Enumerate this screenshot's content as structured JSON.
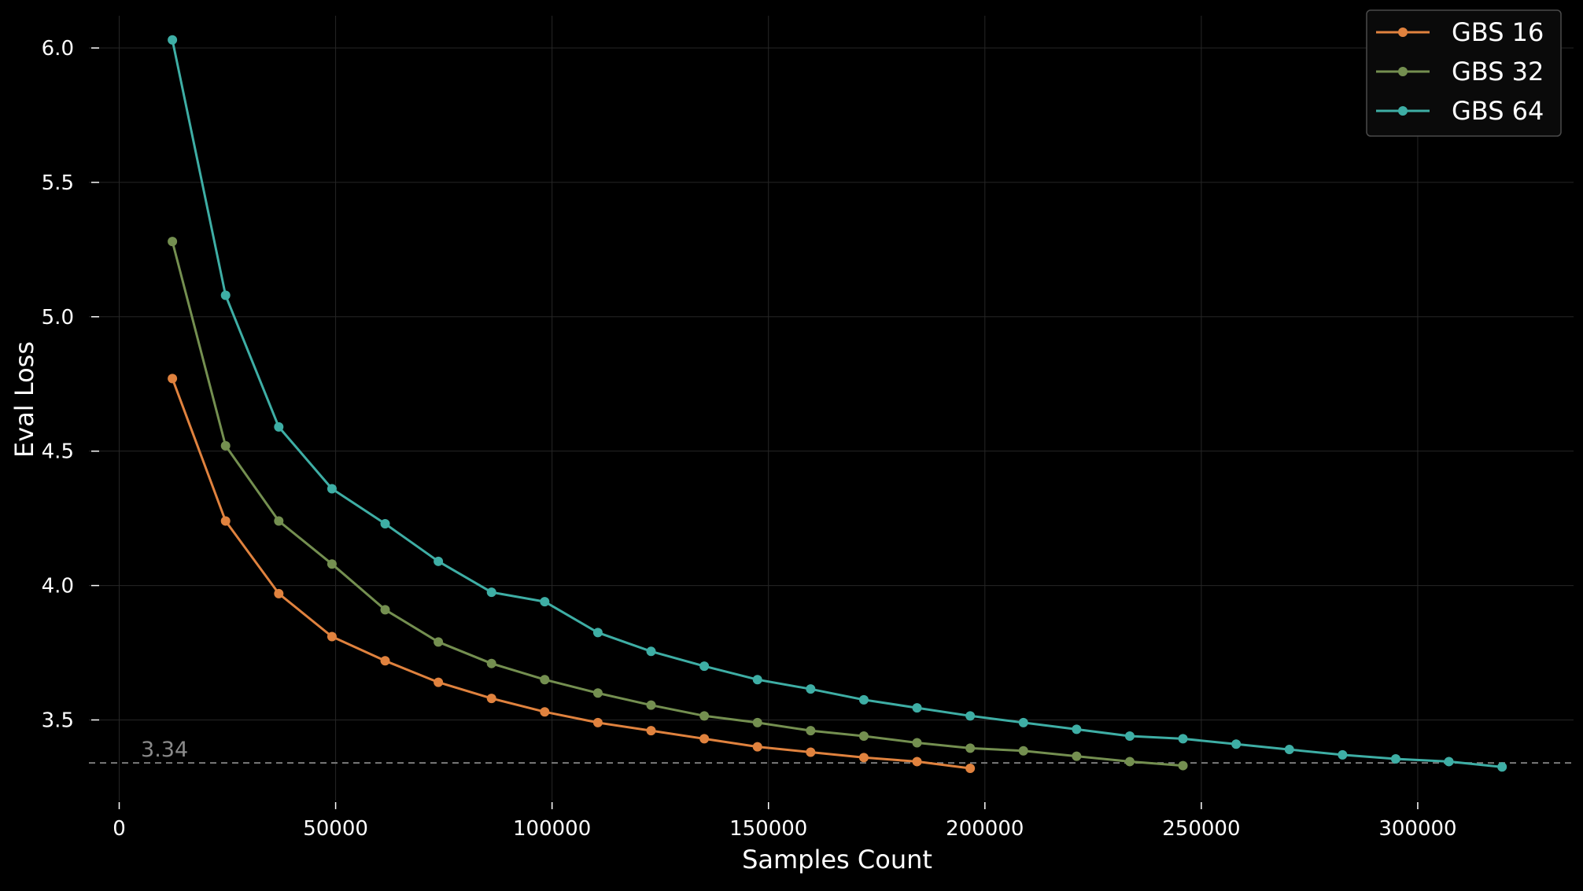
{
  "chart_data": {
    "type": "line",
    "xlabel": "Samples Count",
    "ylabel": "Eval Loss",
    "xlim": [
      -7000,
      336000
    ],
    "ylim": [
      3.2,
      6.12
    ],
    "xticks": [
      0,
      50000,
      100000,
      150000,
      200000,
      250000,
      300000
    ],
    "xtick_labels": [
      "0",
      "50000",
      "100000",
      "150000",
      "200000",
      "250000",
      "300000"
    ],
    "yticks": [
      3.5,
      4.0,
      4.5,
      5.0,
      5.5,
      6.0
    ],
    "ytick_labels": [
      "3.5",
      "4.0",
      "4.5",
      "5.0",
      "5.5",
      "6.0"
    ],
    "grid": true,
    "legend_position": "top-right",
    "reference_line": {
      "y": 3.34,
      "label": "3.34",
      "color": "#7a7a7a",
      "style": "dashed"
    },
    "series": [
      {
        "name": "GBS 16",
        "color": "#e0823e",
        "x": [
          12288,
          24576,
          36864,
          49152,
          61440,
          73728,
          86016,
          98304,
          110592,
          122880,
          135168,
          147456,
          159744,
          172032,
          184320,
          196608
        ],
        "y": [
          4.77,
          4.24,
          3.97,
          3.81,
          3.72,
          3.64,
          3.58,
          3.53,
          3.49,
          3.46,
          3.43,
          3.4,
          3.38,
          3.36,
          3.345,
          3.32
        ]
      },
      {
        "name": "GBS 32",
        "color": "#748f50",
        "x": [
          12288,
          24576,
          36864,
          49152,
          61440,
          73728,
          86016,
          98304,
          110592,
          122880,
          135168,
          147456,
          159744,
          172032,
          184320,
          196608,
          208896,
          221184,
          233472,
          245760
        ],
        "y": [
          5.28,
          4.52,
          4.24,
          4.08,
          3.91,
          3.79,
          3.71,
          3.65,
          3.6,
          3.555,
          3.515,
          3.49,
          3.46,
          3.44,
          3.415,
          3.395,
          3.385,
          3.365,
          3.345,
          3.33
        ]
      },
      {
        "name": "GBS 64",
        "color": "#3eaea5",
        "x": [
          12288,
          24576,
          36864,
          49152,
          61440,
          73728,
          86016,
          98304,
          110592,
          122880,
          135168,
          147456,
          159744,
          172032,
          184320,
          196608,
          208896,
          221184,
          233472,
          245760,
          258048,
          270336,
          282624,
          294912,
          307200,
          319488
        ],
        "y": [
          6.03,
          5.08,
          4.59,
          4.36,
          4.23,
          4.09,
          3.975,
          3.94,
          3.825,
          3.755,
          3.7,
          3.65,
          3.615,
          3.575,
          3.545,
          3.515,
          3.49,
          3.465,
          3.44,
          3.43,
          3.41,
          3.39,
          3.37,
          3.355,
          3.345,
          3.325
        ]
      }
    ]
  }
}
